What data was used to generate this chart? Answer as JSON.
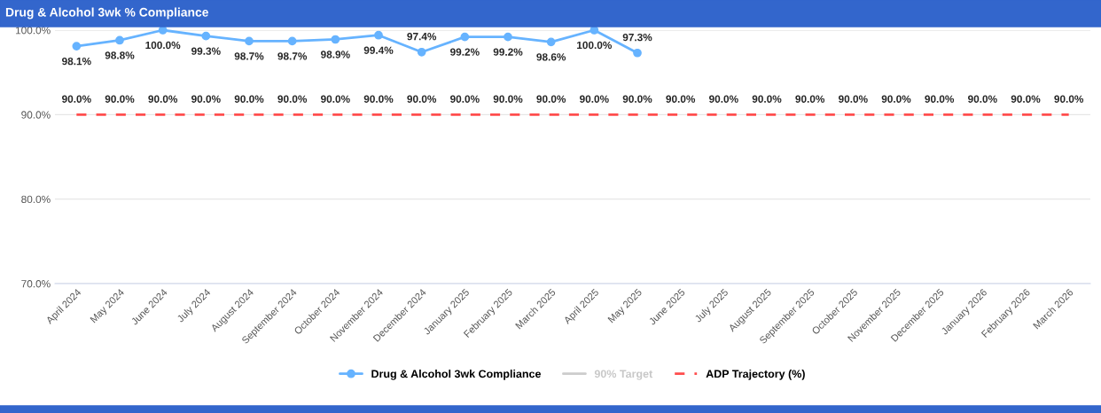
{
  "chart_data": {
    "type": "line",
    "title": "Drug & Alcohol 3wk % Compliance",
    "categories": [
      "April 2024",
      "May 2024",
      "June 2024",
      "July 2024",
      "August 2024",
      "September 2024",
      "October 2024",
      "November 2024",
      "December 2024",
      "January 2025",
      "February 2025",
      "March 2025",
      "April 2025",
      "May 2025",
      "June 2025",
      "July 2025",
      "August 2025",
      "September 2025",
      "October 2025",
      "November 2025",
      "December 2025",
      "January 2026",
      "February 2026",
      "March 2026"
    ],
    "series": [
      {
        "name": "Drug & Alcohol 3wk Compliance",
        "color": "#66b3ff",
        "marker": "circle",
        "line_style": "solid",
        "values": [
          98.1,
          98.8,
          100.0,
          99.3,
          98.7,
          98.7,
          98.9,
          99.4,
          97.4,
          99.2,
          99.2,
          98.6,
          100.0,
          97.3,
          null,
          null,
          null,
          null,
          null,
          null,
          null,
          null,
          null,
          null
        ],
        "value_labels": [
          "98.1%",
          "98.8%",
          "100.0%",
          "99.3%",
          "98.7%",
          "98.7%",
          "98.9%",
          "99.4%",
          "97.4%",
          "99.2%",
          "99.2%",
          "98.6%",
          "100.0%",
          "97.3%",
          null,
          null,
          null,
          null,
          null,
          null,
          null,
          null,
          null,
          null
        ]
      },
      {
        "name": "90% Target",
        "color": "#cccccc",
        "marker": "none",
        "line_style": "solid",
        "values": [
          null,
          null,
          null,
          null,
          null,
          null,
          null,
          null,
          null,
          null,
          null,
          null,
          null,
          null,
          null,
          null,
          null,
          null,
          null,
          null,
          null,
          null,
          null,
          null
        ]
      },
      {
        "name": "ADP Trajectory (%)",
        "color": "#ff4d4d",
        "marker": "none",
        "line_style": "dashed",
        "values": [
          90,
          90,
          90,
          90,
          90,
          90,
          90,
          90,
          90,
          90,
          90,
          90,
          90,
          90,
          90,
          90,
          90,
          90,
          90,
          90,
          90,
          90,
          90,
          90
        ],
        "value_labels": [
          "90.0%",
          "90.0%",
          "90.0%",
          "90.0%",
          "90.0%",
          "90.0%",
          "90.0%",
          "90.0%",
          "90.0%",
          "90.0%",
          "90.0%",
          "90.0%",
          "90.0%",
          "90.0%",
          "90.0%",
          "90.0%",
          "90.0%",
          "90.0%",
          "90.0%",
          "90.0%",
          "90.0%",
          "90.0%",
          "90.0%",
          "90.0%"
        ]
      }
    ],
    "ylim": [
      70,
      100
    ],
    "yticks": [
      {
        "value": 70,
        "label": "70.0%"
      },
      {
        "value": 80,
        "label": "80.0%"
      },
      {
        "value": 90,
        "label": "90.0%"
      },
      {
        "value": 100,
        "label": "100.0%"
      }
    ],
    "grid": "y",
    "legend": "bottom"
  }
}
